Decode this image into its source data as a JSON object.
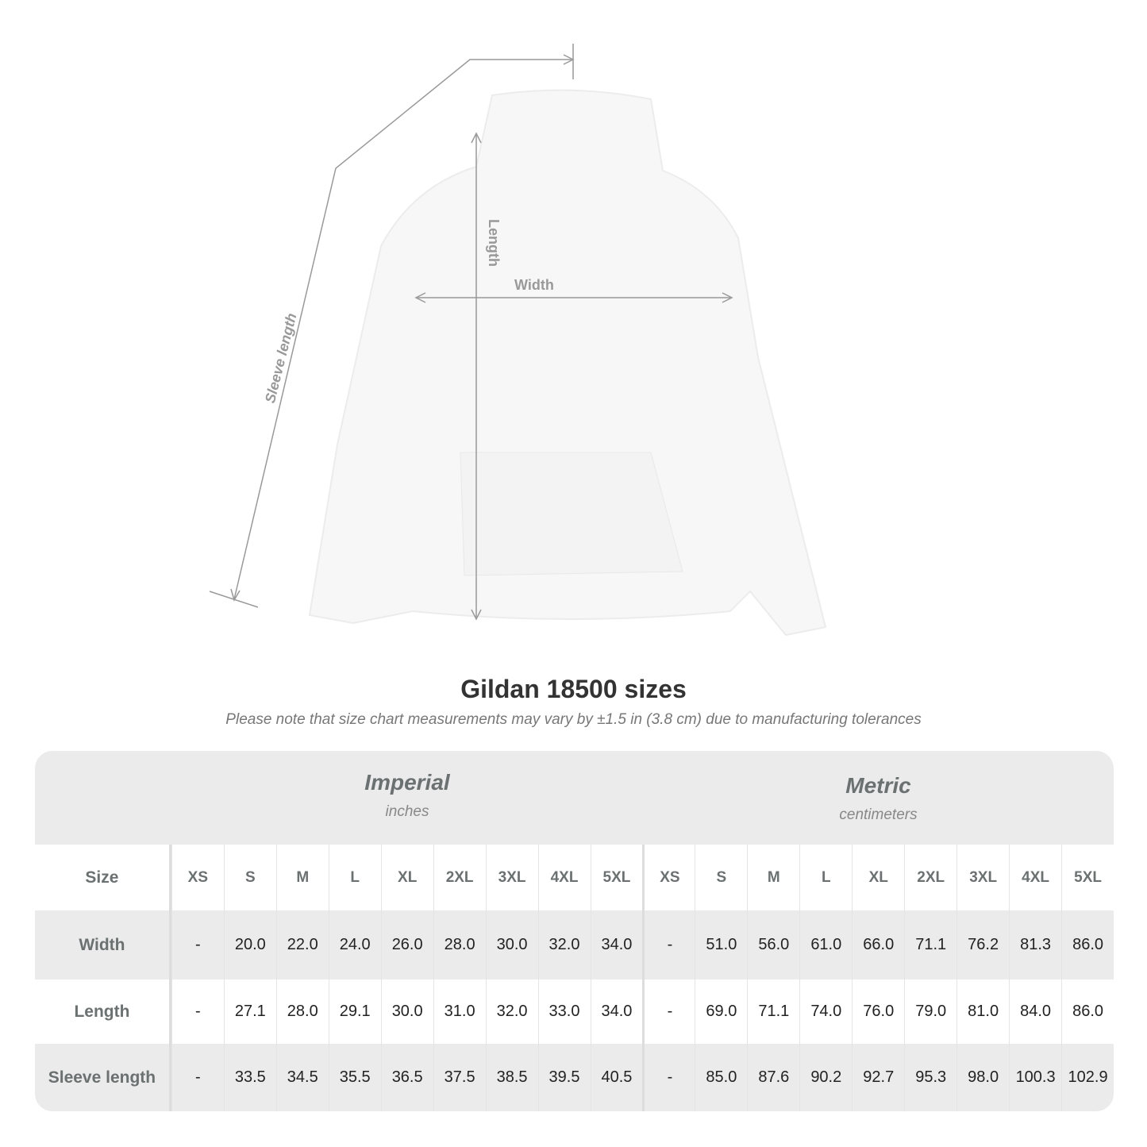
{
  "diagram": {
    "length_label": "Length",
    "width_label": "Width",
    "sleeve_label": "Sleeve length"
  },
  "title": "Gildan 18500 sizes",
  "note": "Please note that size chart measurements may vary by ±1.5 in (3.8 cm) due to manufacturing tolerances",
  "imperial": {
    "name": "Imperial",
    "unit": "inches"
  },
  "metric": {
    "name": "Metric",
    "unit": "centimeters"
  },
  "size_label": "Size",
  "sizes": [
    "XS",
    "S",
    "M",
    "L",
    "XL",
    "2XL",
    "3XL",
    "4XL",
    "5XL"
  ],
  "rows": [
    {
      "label": "Width",
      "imperial": [
        "-",
        "20.0",
        "22.0",
        "24.0",
        "26.0",
        "28.0",
        "30.0",
        "32.0",
        "34.0"
      ],
      "metric": [
        "-",
        "51.0",
        "56.0",
        "61.0",
        "66.0",
        "71.1",
        "76.2",
        "81.3",
        "86.0"
      ]
    },
    {
      "label": "Length",
      "imperial": [
        "-",
        "27.1",
        "28.0",
        "29.1",
        "30.0",
        "31.0",
        "32.0",
        "33.0",
        "34.0"
      ],
      "metric": [
        "-",
        "69.0",
        "71.1",
        "74.0",
        "76.0",
        "79.0",
        "81.0",
        "84.0",
        "86.0"
      ]
    },
    {
      "label": "Sleeve length",
      "imperial": [
        "-",
        "33.5",
        "34.5",
        "35.5",
        "36.5",
        "37.5",
        "38.5",
        "39.5",
        "40.5"
      ],
      "metric": [
        "-",
        "85.0",
        "87.6",
        "90.2",
        "92.7",
        "95.3",
        "98.0",
        "100.3",
        "102.9"
      ]
    }
  ]
}
